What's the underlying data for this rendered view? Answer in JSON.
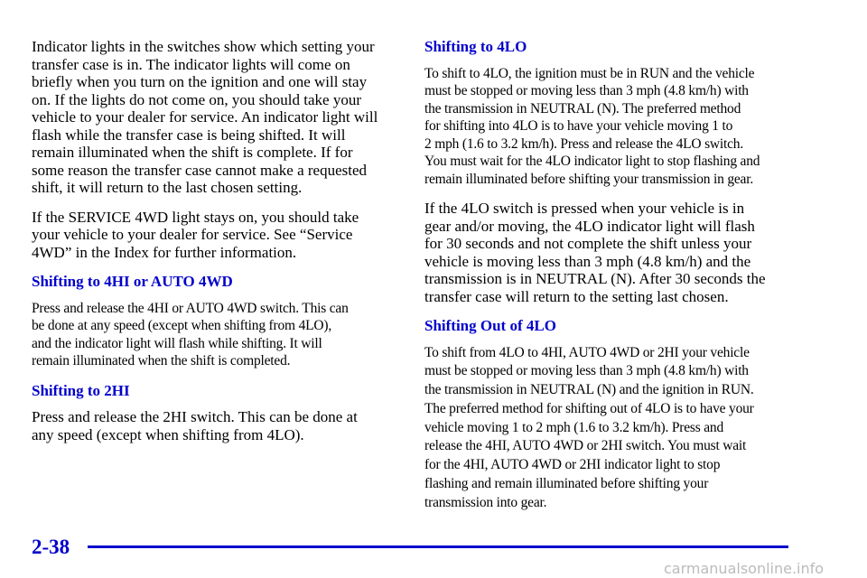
{
  "left": [
    {
      "lines": [
        "Indicator lights in the switches show which setting your",
        "transfer case is in. The indicator lights will come on",
        "briefly when you turn on the ignition and one will stay",
        "on. If the lights do not come on, you should take your",
        "vehicle to your dealer for service. An indicator light will",
        "flash while the transfer case is being shifted. It will",
        "remain illuminated when the shift is complete. If for",
        "some reason the transfer case cannot make a requested",
        "shift, it will return to the last chosen setting."
      ]
    },
    {
      "lines": [
        "If the SERVICE 4WD light stays on, you should take",
        "your vehicle to your dealer for service. See “Service",
        "4WD” in the Index for further information."
      ]
    },
    {
      "heading": "Shifting to 4HI or AUTO 4WD"
    },
    {
      "lines": [
        "Press and release the 4HI or AUTO 4WD switch. This can",
        "be done at any speed (except when shifting from 4LO),",
        "and the indicator light will flash while shifting. It will",
        "remain illuminated when the shift is completed."
      ]
    },
    {
      "heading": "Shifting to 2HI"
    },
    {
      "lines": [
        "Press and release the 2HI switch. This can be done at",
        "any speed (except when shifting from 4LO)."
      ]
    }
  ],
  "right": [
    {
      "heading": "Shifting to 4LO"
    },
    {
      "lines": [
        "To shift to 4LO, the ignition must be in RUN and the vehicle",
        "must be stopped or moving less than 3 mph (4.8 km/h) with",
        "the transmission in NEUTRAL (N). The preferred method",
        "for shifting into 4LO is to have your vehicle moving 1 to",
        "2 mph (1.6 to 3.2 km/h). Press and release the 4LO switch.",
        "You must wait for the 4LO indicator light to stop flashing and",
        "remain illuminated before shifting your transmission in gear."
      ]
    },
    {
      "lines": [
        "If the 4LO switch is pressed when your vehicle is in",
        "gear and/or moving, the 4LO indicator light will flash",
        "for 30 seconds and not complete the shift unless your",
        "vehicle is moving less than 3 mph (4.8 km/h) and the",
        "transmission is in NEUTRAL (N). After 30 seconds the",
        "transfer case will return to the setting last chosen."
      ]
    },
    {
      "heading": "Shifting Out of 4LO"
    },
    {
      "lines": [
        "To shift from 4LO to 4HI, AUTO 4WD or 2HI your vehicle",
        "must be stopped or moving less than 3 mph (4.8 km/h) with",
        "the transmission in NEUTRAL (N) and the ignition in RUN.",
        "The preferred method for shifting out of 4LO is to have your",
        "vehicle moving 1 to 2 mph (1.6 to 3.2 km/h). Press and",
        "release the 4HI, AUTO 4WD or 2HI switch. You must wait",
        "for the 4HI, AUTO 4WD or 2HI indicator light to stop",
        "flashing and remain illuminated before shifting your",
        "transmission into gear."
      ]
    }
  ],
  "footer": {
    "page_number": "2-38",
    "watermark": "carmanualsonline.info"
  }
}
